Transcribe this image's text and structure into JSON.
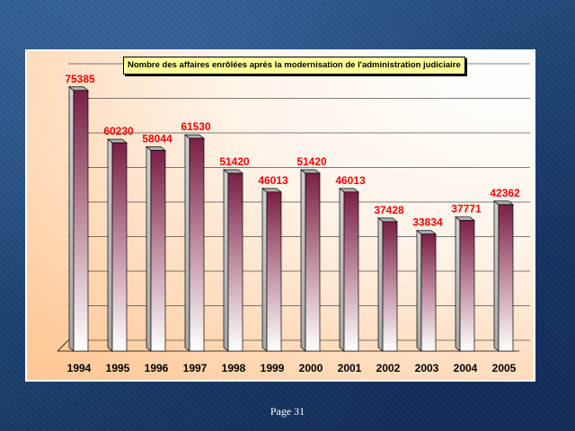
{
  "chart_data": {
    "type": "bar",
    "title": "Nombre des affaires enrôlées après la modernisation de l'administration judiciaire",
    "categories": [
      "1994",
      "1995",
      "1996",
      "1997",
      "1998",
      "1999",
      "2000",
      "2001",
      "2002",
      "2003",
      "2004",
      "2005"
    ],
    "values": [
      75385,
      60230,
      58044,
      61530,
      51420,
      46013,
      51420,
      46013,
      37428,
      33834,
      37771,
      42362
    ],
    "xlabel": "",
    "ylabel": "",
    "ylim": [
      0,
      80000
    ],
    "grid": true,
    "legend": "none",
    "colors": {
      "bar_top": "#7a1f45",
      "bar_bottom": "#ffffff",
      "value_label": "#ff0000",
      "title_box": "#ffff99",
      "plot_background": "#ffe9d6"
    }
  },
  "footer": {
    "page_label": "Page 31"
  }
}
